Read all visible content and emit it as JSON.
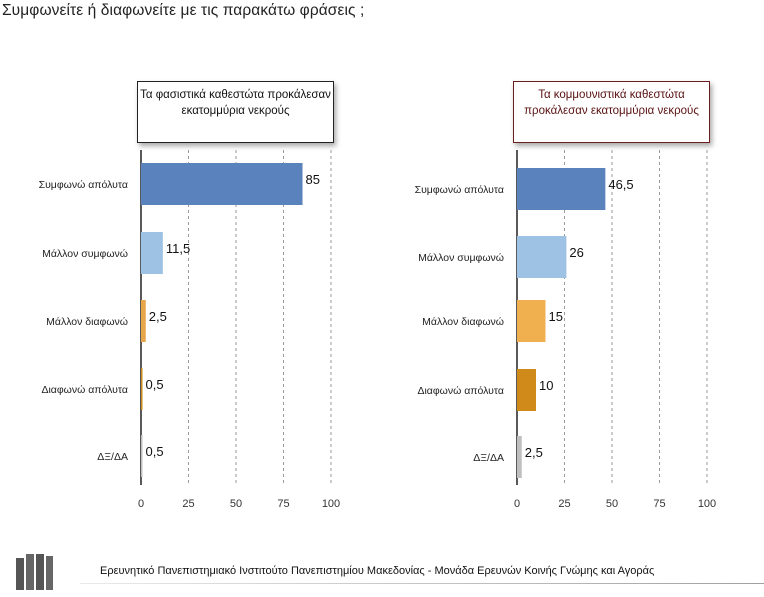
{
  "question": "Συμφωνείτε ή διαφωνείτε με τις παρακάτω φράσεις ;",
  "footer": "Ερευνητικό Πανεπιστημιακό Ινστιτούτο Πανεπιστημίου Μακεδονίας - Μονάδα Ερευνών Κοινής Γνώμης και Αγοράς",
  "chart_data": [
    {
      "type": "bar",
      "orientation": "horizontal",
      "title": "Τα φασιστικά καθεστώτα προκάλεσαν εκατομμύρια νεκρούς",
      "categories": [
        "Συμφωνώ απόλυτα",
        "Μάλλον συμφωνώ",
        "Μάλλον διαφωνώ",
        "Διαφωνώ απόλυτα",
        "ΔΞ/ΔΑ"
      ],
      "values": [
        85,
        11.5,
        2.5,
        0.5,
        0.5
      ],
      "value_labels": [
        "85",
        "11,5",
        "2,5",
        "0,5",
        "0,5"
      ],
      "bar_colors": [
        "#5a82bc",
        "#9ec2e4",
        "#e8a64a",
        "#c98a1c",
        "#bfbfbf"
      ],
      "xlim": [
        0,
        100
      ],
      "xticks": [
        "0",
        "25",
        "50",
        "75",
        "100"
      ],
      "grid": true
    },
    {
      "type": "bar",
      "orientation": "horizontal",
      "title": "Τα κομμουνιστικά καθεστώτα προκάλεσαν εκατομμύρια νεκρούς",
      "categories": [
        "Συμφωνώ απόλυτα",
        "Μάλλον συμφωνώ",
        "Μάλλον διαφωνώ",
        "Διαφωνώ απόλυτα",
        "ΔΞ/ΔΑ"
      ],
      "values": [
        46.5,
        26,
        15,
        10,
        2.5
      ],
      "value_labels": [
        "46,5",
        "26",
        "15",
        "10",
        "2,5"
      ],
      "bar_colors": [
        "#5a82bc",
        "#9ec2e4",
        "#f0b050",
        "#d08a1a",
        "#bfbfbf"
      ],
      "xlim": [
        0,
        100
      ],
      "xticks": [
        "0",
        "25",
        "50",
        "75",
        "100"
      ],
      "grid": true
    }
  ]
}
